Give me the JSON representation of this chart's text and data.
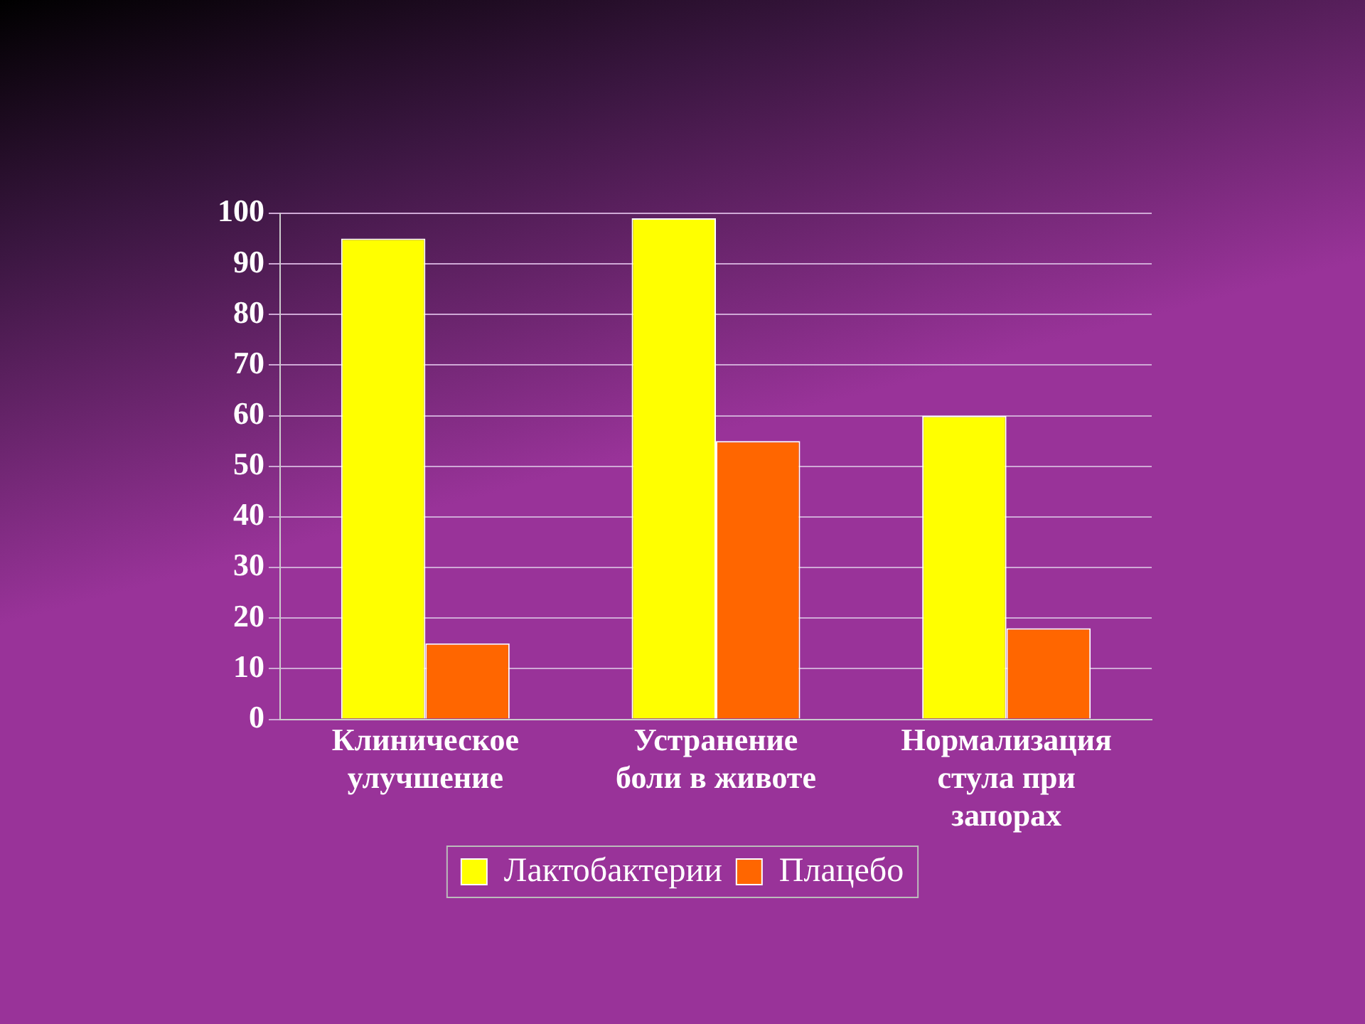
{
  "chart_data": {
    "type": "bar",
    "categories": [
      "Клиническое улучшение",
      "Устранение боли в животе",
      "Нормализация стула при запорах"
    ],
    "series": [
      {
        "name": "Лактобактерии",
        "color": "#ffff00",
        "values": [
          95,
          99,
          60
        ]
      },
      {
        "name": "Плацебо",
        "color": "#ff6600",
        "values": [
          15,
          55,
          18
        ]
      }
    ],
    "ylim": [
      0,
      100
    ],
    "yticks": [
      0,
      10,
      20,
      30,
      40,
      50,
      60,
      70,
      80,
      90,
      100
    ],
    "grid": "y",
    "legend": "bottom"
  }
}
